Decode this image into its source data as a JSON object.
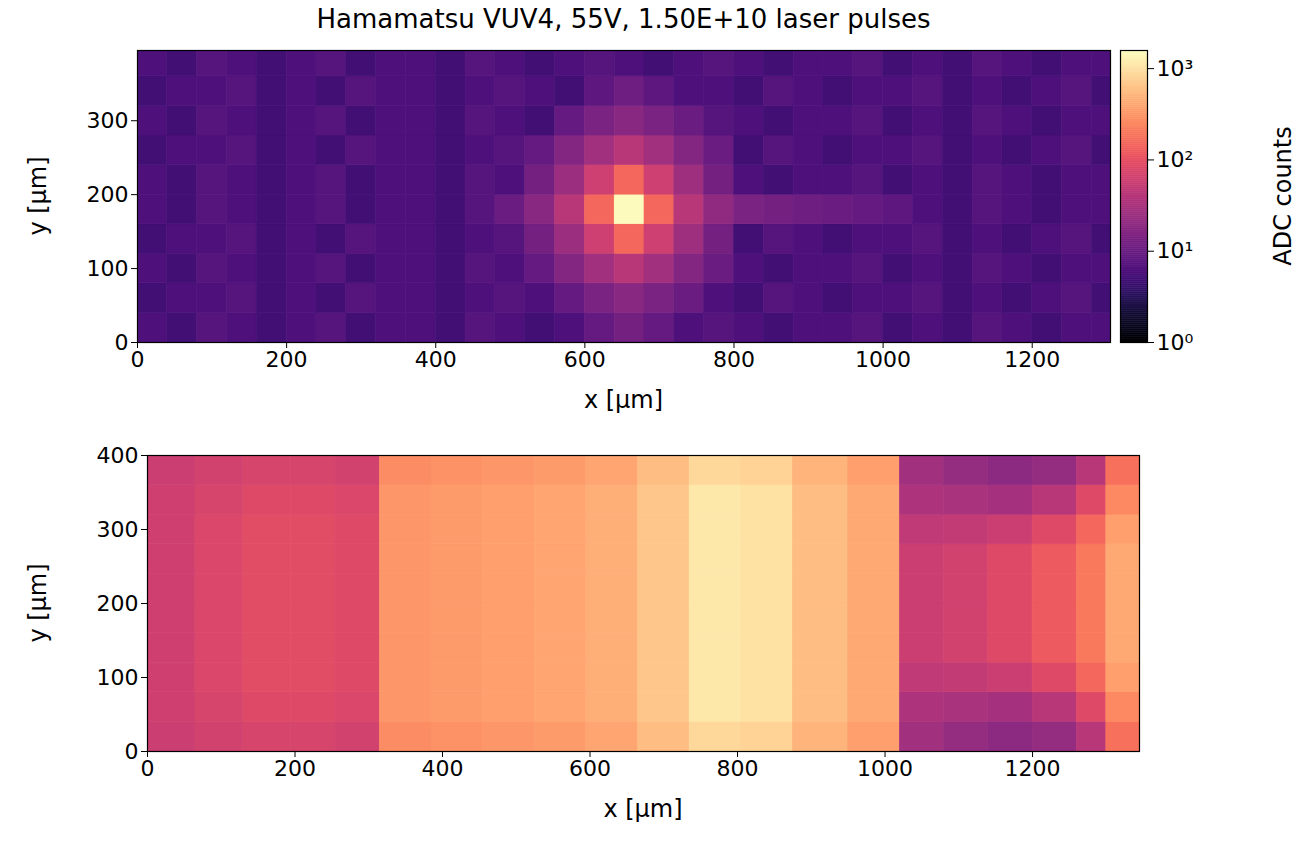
{
  "chart_data": [
    {
      "type": "heatmap",
      "title": "Hamamatsu VUV4, 55V, 1.50E+10 laser pulses",
      "x_label": "x [μm]",
      "y_label": "y [μm]",
      "xlim": [
        0,
        1305
      ],
      "ylim": [
        0,
        395
      ],
      "xticks": [
        0,
        200,
        400,
        600,
        800,
        1000,
        1200
      ],
      "yticks": [
        0,
        100,
        200,
        300
      ],
      "log": true,
      "x_edges": [
        0,
        40,
        80,
        120,
        160,
        200,
        240,
        280,
        320,
        360,
        400,
        440,
        480,
        520,
        560,
        600,
        640,
        680,
        720,
        760,
        800,
        840,
        880,
        920,
        960,
        1000,
        1040,
        1080,
        1120,
        1160,
        1200,
        1240,
        1280,
        1305
      ],
      "y_edges": [
        0,
        40,
        80,
        120,
        160,
        200,
        240,
        280,
        320,
        360,
        395
      ],
      "cells": [
        [
          6,
          5,
          7,
          6,
          5,
          6,
          7,
          5,
          6,
          6,
          5,
          7,
          6,
          5,
          6,
          9,
          12,
          9,
          6,
          7,
          6,
          5,
          6,
          6,
          7,
          5,
          6,
          5,
          7,
          6,
          5,
          6,
          6
        ],
        [
          5,
          6,
          6,
          7,
          5,
          6,
          5,
          7,
          6,
          6,
          5,
          6,
          7,
          6,
          9,
          14,
          18,
          14,
          10,
          6,
          5,
          7,
          6,
          5,
          6,
          6,
          7,
          5,
          6,
          5,
          6,
          7,
          5
        ],
        [
          6,
          5,
          7,
          6,
          5,
          6,
          7,
          5,
          6,
          6,
          5,
          7,
          6,
          9,
          16,
          28,
          40,
          28,
          16,
          10,
          6,
          5,
          6,
          6,
          7,
          5,
          6,
          5,
          7,
          6,
          5,
          6,
          6
        ],
        [
          5,
          6,
          6,
          7,
          5,
          6,
          5,
          7,
          6,
          6,
          5,
          6,
          7,
          12,
          25,
          60,
          150,
          60,
          26,
          12,
          5,
          7,
          6,
          5,
          6,
          6,
          7,
          5,
          6,
          5,
          6,
          7,
          5
        ],
        [
          6,
          5,
          7,
          6,
          5,
          6,
          7,
          5,
          6,
          6,
          5,
          7,
          10,
          18,
          40,
          150,
          1500,
          150,
          40,
          20,
          14,
          12,
          11,
          10,
          9,
          8,
          6,
          5,
          7,
          6,
          5,
          6,
          6
        ],
        [
          6,
          5,
          7,
          6,
          5,
          6,
          7,
          5,
          6,
          6,
          5,
          7,
          6,
          12,
          25,
          60,
          150,
          60,
          26,
          12,
          6,
          5,
          6,
          6,
          7,
          5,
          6,
          5,
          7,
          6,
          5,
          6,
          6
        ],
        [
          5,
          6,
          6,
          7,
          5,
          6,
          5,
          7,
          6,
          6,
          5,
          6,
          7,
          9,
          16,
          28,
          40,
          28,
          16,
          10,
          5,
          7,
          6,
          5,
          6,
          6,
          7,
          5,
          6,
          5,
          6,
          7,
          5
        ],
        [
          6,
          5,
          7,
          6,
          5,
          6,
          7,
          5,
          6,
          6,
          5,
          7,
          6,
          5,
          9,
          14,
          18,
          14,
          10,
          7,
          6,
          5,
          6,
          6,
          7,
          5,
          6,
          5,
          7,
          6,
          5,
          6,
          6
        ],
        [
          5,
          6,
          6,
          7,
          5,
          6,
          5,
          7,
          6,
          6,
          5,
          6,
          7,
          6,
          5,
          8,
          11,
          8,
          6,
          6,
          5,
          7,
          6,
          5,
          6,
          6,
          7,
          5,
          6,
          5,
          6,
          7,
          5
        ],
        [
          6,
          5,
          7,
          6,
          5,
          6,
          7,
          5,
          6,
          6,
          5,
          7,
          6,
          5,
          6,
          7,
          6,
          5,
          6,
          7,
          6,
          5,
          6,
          6,
          7,
          5,
          6,
          5,
          7,
          6,
          5,
          6,
          6
        ]
      ],
      "colorbar": {
        "label": "ADC counts",
        "range": [
          1,
          1580
        ],
        "ticks": [
          {
            "value": 1,
            "label": "10⁰"
          },
          {
            "value": 10,
            "label": "10¹"
          },
          {
            "value": 100,
            "label": "10²"
          },
          {
            "value": 1000,
            "label": "10³"
          }
        ]
      }
    },
    {
      "type": "heatmap",
      "x_label": "x [μm]",
      "y_label": "y [μm]",
      "xlim": [
        0,
        1345
      ],
      "ylim": [
        0,
        400
      ],
      "xticks": [
        0,
        200,
        400,
        600,
        800,
        1000,
        1200
      ],
      "yticks": [
        0,
        100,
        200,
        300,
        400
      ],
      "clim": [
        0,
        1
      ],
      "x_edges": [
        0,
        65,
        130,
        195,
        255,
        315,
        385,
        455,
        525,
        595,
        665,
        735,
        805,
        875,
        950,
        1020,
        1080,
        1140,
        1200,
        1260,
        1300,
        1345
      ],
      "y_edges": [
        0,
        40,
        80,
        120,
        160,
        200,
        240,
        280,
        320,
        360,
        400
      ],
      "cells": [
        [
          0.55,
          0.57,
          0.58,
          0.58,
          0.57,
          0.76,
          0.77,
          0.78,
          0.79,
          0.81,
          0.86,
          0.92,
          0.91,
          0.84,
          0.8,
          0.45,
          0.42,
          0.4,
          0.42,
          0.5,
          0.7
        ],
        [
          0.56,
          0.58,
          0.6,
          0.6,
          0.59,
          0.78,
          0.79,
          0.8,
          0.81,
          0.83,
          0.88,
          0.95,
          0.94,
          0.86,
          0.82,
          0.48,
          0.47,
          0.46,
          0.5,
          0.6,
          0.75
        ],
        [
          0.56,
          0.59,
          0.61,
          0.61,
          0.6,
          0.78,
          0.79,
          0.8,
          0.81,
          0.83,
          0.88,
          0.95,
          0.94,
          0.86,
          0.82,
          0.52,
          0.53,
          0.55,
          0.6,
          0.68,
          0.8
        ],
        [
          0.56,
          0.59,
          0.61,
          0.61,
          0.6,
          0.78,
          0.79,
          0.8,
          0.81,
          0.83,
          0.88,
          0.95,
          0.94,
          0.86,
          0.82,
          0.55,
          0.57,
          0.6,
          0.65,
          0.72,
          0.82
        ],
        [
          0.56,
          0.59,
          0.61,
          0.61,
          0.6,
          0.78,
          0.79,
          0.8,
          0.81,
          0.83,
          0.88,
          0.95,
          0.94,
          0.86,
          0.82,
          0.55,
          0.57,
          0.6,
          0.65,
          0.72,
          0.82
        ],
        [
          0.56,
          0.59,
          0.61,
          0.61,
          0.6,
          0.78,
          0.79,
          0.8,
          0.81,
          0.83,
          0.88,
          0.95,
          0.94,
          0.86,
          0.82,
          0.55,
          0.57,
          0.6,
          0.65,
          0.72,
          0.82
        ],
        [
          0.56,
          0.59,
          0.61,
          0.61,
          0.6,
          0.78,
          0.79,
          0.8,
          0.81,
          0.83,
          0.88,
          0.95,
          0.94,
          0.86,
          0.82,
          0.55,
          0.57,
          0.6,
          0.65,
          0.72,
          0.82
        ],
        [
          0.56,
          0.59,
          0.61,
          0.61,
          0.6,
          0.78,
          0.79,
          0.8,
          0.81,
          0.83,
          0.88,
          0.95,
          0.94,
          0.86,
          0.82,
          0.52,
          0.53,
          0.55,
          0.6,
          0.68,
          0.8
        ],
        [
          0.56,
          0.58,
          0.6,
          0.6,
          0.59,
          0.78,
          0.79,
          0.8,
          0.81,
          0.83,
          0.88,
          0.95,
          0.94,
          0.86,
          0.82,
          0.48,
          0.47,
          0.46,
          0.5,
          0.6,
          0.75
        ],
        [
          0.55,
          0.57,
          0.58,
          0.58,
          0.57,
          0.76,
          0.77,
          0.78,
          0.79,
          0.81,
          0.86,
          0.92,
          0.91,
          0.84,
          0.8,
          0.45,
          0.42,
          0.4,
          0.42,
          0.5,
          0.7
        ]
      ]
    }
  ]
}
